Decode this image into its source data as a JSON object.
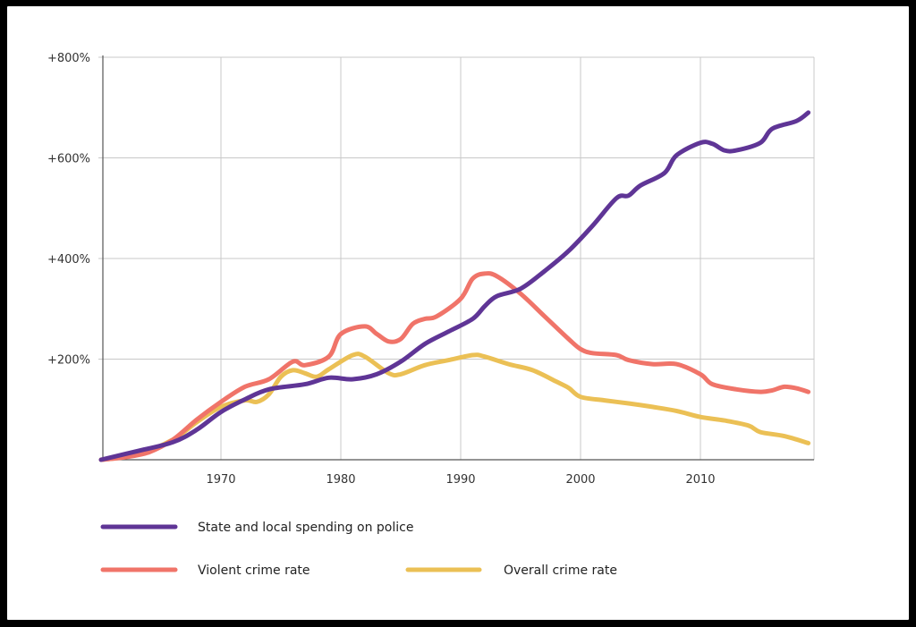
{
  "chart_data": {
    "type": "line",
    "title": "",
    "xlabel": "",
    "ylabel": "",
    "xlim": [
      1960,
      2019
    ],
    "ylim": [
      0,
      800
    ],
    "x_ticks": [
      1970,
      1980,
      1990,
      2000,
      2010
    ],
    "x_tick_labels": [
      "1970",
      "1980",
      "1990",
      "2000",
      "2010"
    ],
    "y_ticks": [
      200,
      400,
      600,
      800
    ],
    "y_tick_labels": [
      "+200%",
      "+400%",
      "+600%",
      "+800%"
    ],
    "grid": true,
    "legend_position": "bottom",
    "series": [
      {
        "name": "State and local spending on police",
        "color": "#5f3596",
        "points": [
          [
            1960,
            0
          ],
          [
            1963,
            17
          ],
          [
            1966,
            35
          ],
          [
            1968,
            60
          ],
          [
            1970,
            95
          ],
          [
            1972,
            120
          ],
          [
            1974,
            140
          ],
          [
            1977,
            150
          ],
          [
            1979,
            163
          ],
          [
            1981,
            160
          ],
          [
            1983,
            170
          ],
          [
            1985,
            195
          ],
          [
            1987,
            230
          ],
          [
            1989,
            255
          ],
          [
            1991,
            280
          ],
          [
            1992,
            305
          ],
          [
            1993,
            325
          ],
          [
            1995,
            340
          ],
          [
            1997,
            375
          ],
          [
            1999,
            415
          ],
          [
            2001,
            465
          ],
          [
            2003,
            520
          ],
          [
            2004,
            525
          ],
          [
            2005,
            545
          ],
          [
            2007,
            570
          ],
          [
            2008,
            605
          ],
          [
            2010,
            630
          ],
          [
            2011,
            628
          ],
          [
            2012,
            615
          ],
          [
            2013,
            615
          ],
          [
            2015,
            630
          ],
          [
            2016,
            658
          ],
          [
            2018,
            673
          ],
          [
            2019,
            690
          ]
        ]
      },
      {
        "name": "Violent crime rate",
        "color": "#f07469",
        "points": [
          [
            1960,
            0
          ],
          [
            1962,
            5
          ],
          [
            1964,
            15
          ],
          [
            1966,
            40
          ],
          [
            1968,
            80
          ],
          [
            1970,
            115
          ],
          [
            1972,
            145
          ],
          [
            1974,
            160
          ],
          [
            1976,
            195
          ],
          [
            1977,
            188
          ],
          [
            1979,
            205
          ],
          [
            1980,
            250
          ],
          [
            1982,
            265
          ],
          [
            1983,
            250
          ],
          [
            1984,
            235
          ],
          [
            1985,
            240
          ],
          [
            1986,
            270
          ],
          [
            1987,
            280
          ],
          [
            1988,
            285
          ],
          [
            1990,
            320
          ],
          [
            1991,
            360
          ],
          [
            1992,
            370
          ],
          [
            1993,
            365
          ],
          [
            1995,
            330
          ],
          [
            1997,
            285
          ],
          [
            1999,
            240
          ],
          [
            2000,
            220
          ],
          [
            2001,
            212
          ],
          [
            2003,
            208
          ],
          [
            2004,
            198
          ],
          [
            2006,
            190
          ],
          [
            2008,
            190
          ],
          [
            2010,
            170
          ],
          [
            2011,
            150
          ],
          [
            2013,
            140
          ],
          [
            2015,
            135
          ],
          [
            2016,
            138
          ],
          [
            2017,
            145
          ],
          [
            2018,
            142
          ],
          [
            2019,
            135
          ]
        ]
      },
      {
        "name": "Overall crime rate",
        "color": "#ebc055",
        "points": [
          [
            1960,
            0
          ],
          [
            1963,
            10
          ],
          [
            1966,
            40
          ],
          [
            1968,
            75
          ],
          [
            1970,
            105
          ],
          [
            1972,
            118
          ],
          [
            1973,
            115
          ],
          [
            1974,
            130
          ],
          [
            1975,
            165
          ],
          [
            1976,
            178
          ],
          [
            1977,
            172
          ],
          [
            1978,
            165
          ],
          [
            1979,
            180
          ],
          [
            1981,
            208
          ],
          [
            1982,
            205
          ],
          [
            1984,
            172
          ],
          [
            1985,
            170
          ],
          [
            1987,
            188
          ],
          [
            1989,
            198
          ],
          [
            1991,
            208
          ],
          [
            1992,
            205
          ],
          [
            1994,
            190
          ],
          [
            1996,
            178
          ],
          [
            1998,
            155
          ],
          [
            1999,
            143
          ],
          [
            2000,
            125
          ],
          [
            2002,
            118
          ],
          [
            2004,
            112
          ],
          [
            2006,
            105
          ],
          [
            2008,
            97
          ],
          [
            2010,
            85
          ],
          [
            2012,
            78
          ],
          [
            2014,
            68
          ],
          [
            2015,
            55
          ],
          [
            2017,
            47
          ],
          [
            2019,
            33
          ]
        ]
      }
    ]
  }
}
